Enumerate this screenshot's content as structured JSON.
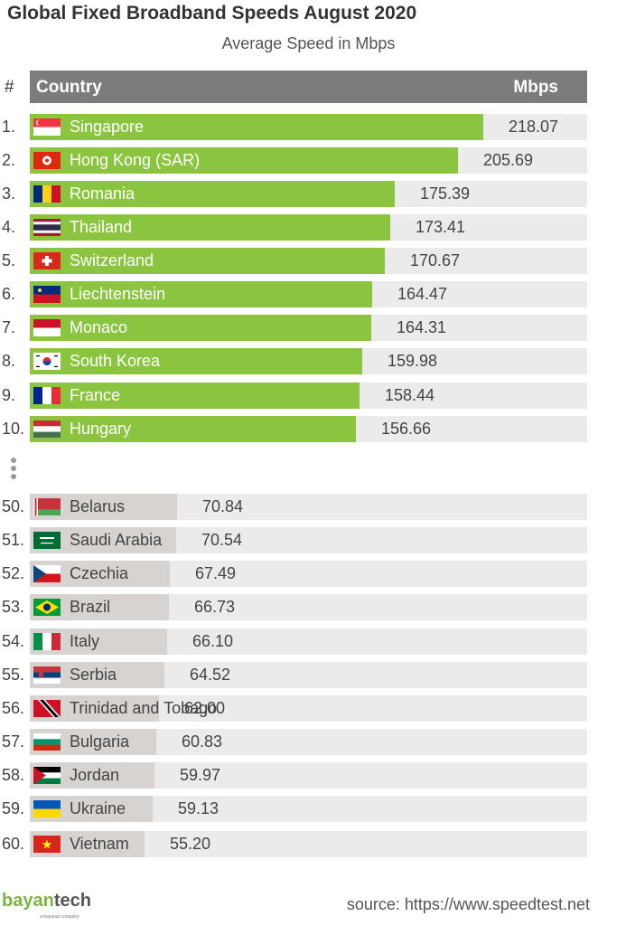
{
  "title": "Global Fixed Broadband Speeds August 2020",
  "subtitle": "Average Speed in Mbps",
  "header": {
    "hash": "#",
    "country": "Country",
    "mbps": "Mbps"
  },
  "colors": {
    "top": "#8bc53f",
    "bottom": "#d6d3d1",
    "track": "#ebebeb",
    "header": "#7c7c7c"
  },
  "source": "source: https://www.speedtest.net",
  "logo": {
    "brand_a": "bayan",
    "brand_b": "tech",
    "tagline": "a bayanat company"
  },
  "chart_data": {
    "type": "bar",
    "title": "Global Fixed Broadband Speeds August 2020",
    "subtitle": "Average Speed in Mbps",
    "xlim": [
      0,
      218.07
    ],
    "rows": [
      {
        "rank": "1.",
        "country": "Singapore",
        "value": 218.07,
        "flag": "singapore-flag"
      },
      {
        "rank": "2.",
        "country": "Hong Kong (SAR)",
        "value": 205.69,
        "flag": "hong-kong-flag"
      },
      {
        "rank": "3.",
        "country": "Romania",
        "value": 175.39,
        "flag": "romania-flag"
      },
      {
        "rank": "4.",
        "country": "Thailand",
        "value": 173.41,
        "flag": "thailand-flag"
      },
      {
        "rank": "5.",
        "country": "Switzerland",
        "value": 170.67,
        "flag": "switzerland-flag"
      },
      {
        "rank": "6.",
        "country": "Liechtenstein",
        "value": 164.47,
        "flag": "liechtenstein-flag"
      },
      {
        "rank": "7.",
        "country": "Monaco",
        "value": 164.31,
        "flag": "monaco-flag"
      },
      {
        "rank": "8.",
        "country": "South Korea",
        "value": 159.98,
        "flag": "south-korea-flag"
      },
      {
        "rank": "9.",
        "country": "France",
        "value": 158.44,
        "flag": "france-flag"
      },
      {
        "rank": "10.",
        "country": "Hungary",
        "value": 156.66,
        "flag": "hungary-flag"
      },
      {
        "rank": "50.",
        "country": "Belarus",
        "value": 70.84,
        "flag": "belarus-flag"
      },
      {
        "rank": "51.",
        "country": "Saudi Arabia",
        "value": 70.54,
        "flag": "saudi-arabia-flag"
      },
      {
        "rank": "52.",
        "country": "Czechia",
        "value": 67.49,
        "flag": "czechia-flag"
      },
      {
        "rank": "53.",
        "country": "Brazil",
        "value": 66.73,
        "flag": "brazil-flag"
      },
      {
        "rank": "54.",
        "country": "Italy",
        "value": 66.1,
        "flag": "italy-flag"
      },
      {
        "rank": "55.",
        "country": "Serbia",
        "value": 64.52,
        "flag": "serbia-flag"
      },
      {
        "rank": "56.",
        "country": "Trinidad and Tobago",
        "value": 62.0,
        "flag": "trinidad-tobago-flag"
      },
      {
        "rank": "57.",
        "country": "Bulgaria",
        "value": 60.83,
        "flag": "bulgaria-flag"
      },
      {
        "rank": "58.",
        "country": "Jordan",
        "value": 59.97,
        "flag": "jordan-flag"
      },
      {
        "rank": "59.",
        "country": "Ukraine",
        "value": 59.13,
        "flag": "ukraine-flag"
      },
      {
        "rank": "60.",
        "country": "Vietnam",
        "value": 55.2,
        "flag": "vietnam-flag"
      }
    ]
  }
}
